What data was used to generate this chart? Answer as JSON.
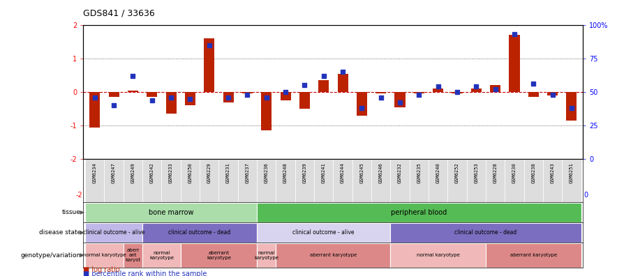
{
  "title": "GDS841 / 33636",
  "samples": [
    "GSM6234",
    "GSM6247",
    "GSM6249",
    "GSM6242",
    "GSM6233",
    "GSM6250",
    "GSM6229",
    "GSM6231",
    "GSM6237",
    "GSM6236",
    "GSM6248",
    "GSM6239",
    "GSM6241",
    "GSM6244",
    "GSM6245",
    "GSM6246",
    "GSM6232",
    "GSM6235",
    "GSM6240",
    "GSM6252",
    "GSM6253",
    "GSM6228",
    "GSM6230",
    "GSM6238",
    "GSM6243",
    "GSM6251"
  ],
  "log_ratio": [
    -1.05,
    -0.15,
    0.05,
    -0.15,
    -0.65,
    -0.4,
    1.6,
    -0.3,
    -0.05,
    -1.15,
    -0.25,
    -0.5,
    0.35,
    0.55,
    -0.7,
    -0.05,
    -0.45,
    -0.05,
    0.1,
    -0.05,
    0.1,
    0.2,
    1.7,
    -0.15,
    -0.1,
    -0.85
  ],
  "percentile": [
    46,
    40,
    62,
    44,
    46,
    45,
    85,
    46,
    48,
    46,
    50,
    55,
    62,
    65,
    38,
    46,
    42,
    48,
    54,
    50,
    54,
    52,
    93,
    56,
    48,
    38
  ],
  "bar_color": "#bb2200",
  "dot_color": "#2233bb",
  "ylim_left": [
    -2,
    2
  ],
  "ylim_right": [
    0,
    100
  ],
  "tissue_groups": [
    {
      "label": "bone marrow",
      "start": 0,
      "end": 9,
      "color": "#aaddaa"
    },
    {
      "label": "peripheral blood",
      "start": 9,
      "end": 26,
      "color": "#55bb55"
    }
  ],
  "disease_groups": [
    {
      "label": "clinical outcome - alive",
      "start": 0,
      "end": 3,
      "color": "#c0b8e8"
    },
    {
      "label": "clinical outcome - dead",
      "start": 3,
      "end": 9,
      "color": "#7b6ec0"
    },
    {
      "label": "clinical outcome - alive",
      "start": 9,
      "end": 16,
      "color": "#d8d4f0"
    },
    {
      "label": "clinical outcome - dead",
      "start": 16,
      "end": 26,
      "color": "#7b6ec0"
    }
  ],
  "geno_groups": [
    {
      "label": "normal karyotype",
      "start": 0,
      "end": 2,
      "color": "#f0b8b8"
    },
    {
      "label": "aberr\nant\nkaryot",
      "start": 2,
      "end": 3,
      "color": "#dd8888"
    },
    {
      "label": "normal\nkaryotype",
      "start": 3,
      "end": 5,
      "color": "#f0b8b8"
    },
    {
      "label": "aberrant\nkaryotype",
      "start": 5,
      "end": 9,
      "color": "#dd8888"
    },
    {
      "label": "normal\nkaryotype",
      "start": 9,
      "end": 10,
      "color": "#f0b8b8"
    },
    {
      "label": "aberrant karyotype",
      "start": 10,
      "end": 16,
      "color": "#dd8888"
    },
    {
      "label": "normal karyotype",
      "start": 16,
      "end": 21,
      "color": "#f0b8b8"
    },
    {
      "label": "aberrant karyotype",
      "start": 21,
      "end": 26,
      "color": "#dd8888"
    }
  ],
  "row_labels": [
    "tissue",
    "disease state",
    "genotype/variation"
  ],
  "legend_items": [
    {
      "color": "#bb2200",
      "label": "log ratio"
    },
    {
      "color": "#2233bb",
      "label": "percentile rank within the sample"
    }
  ]
}
